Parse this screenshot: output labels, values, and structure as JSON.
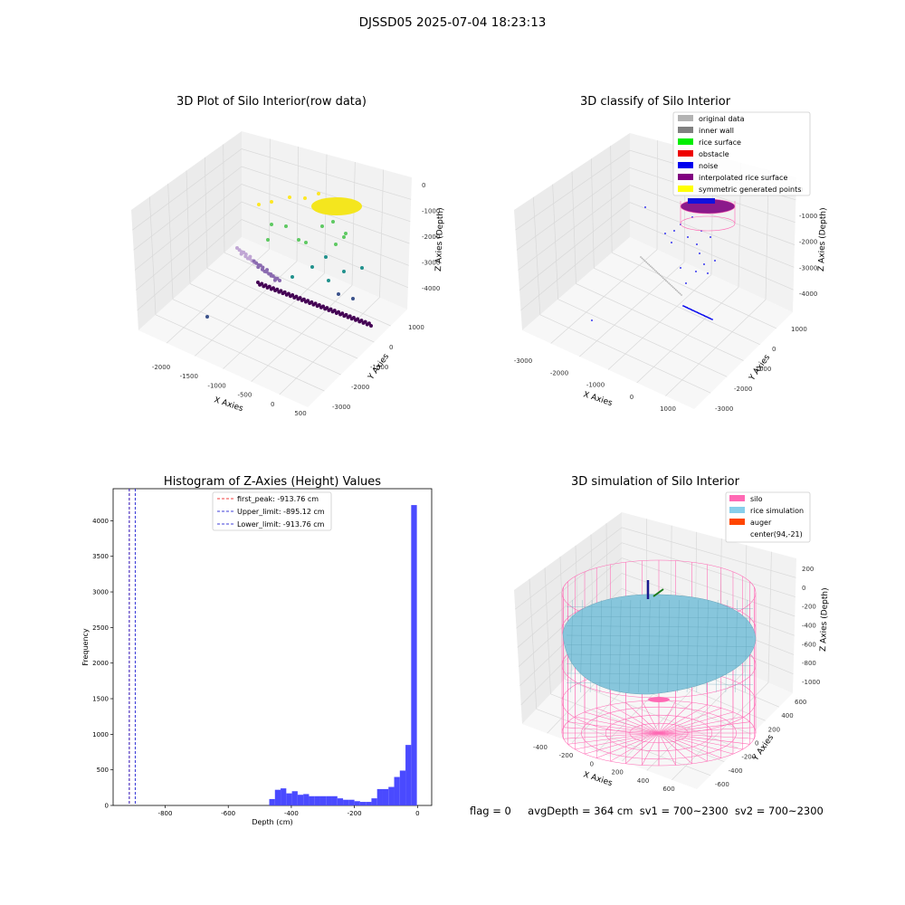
{
  "figure": {
    "suptitle": "DJSSD05 2025-07-04 18:23:13",
    "status": {
      "flag": "flag = 0",
      "avg_depth": "avgDepth = 364 cm",
      "sv1": "sv1 = 700~2300",
      "sv2": "sv2 = 700~2300"
    }
  },
  "chart_data": [
    {
      "type": "scatter3d",
      "title": "3D Plot of Silo Interior(row data)",
      "xlabel": "X Axies",
      "ylabel": "Y Axies",
      "zlabel": "Z Axies (Depth)",
      "x_ticks": [
        "-2000",
        "-1500",
        "-1000",
        "-500",
        "0",
        "500"
      ],
      "y_ticks": [
        "1000",
        "0",
        "-1000",
        "-2000",
        "-3000"
      ],
      "z_ticks": [
        "0",
        "-1000",
        "-2000",
        "-3000",
        "-4000"
      ],
      "colormap": [
        "#440154",
        "#3b528b",
        "#21918c",
        "#5ec962",
        "#fde725"
      ],
      "point_groups": [
        {
          "desc": "dense line along Y",
          "x": [
            -200,
            300
          ],
          "y": [
            -2600,
            800
          ],
          "z": [
            -4300,
            -4300
          ]
        },
        {
          "desc": "upper cluster",
          "x": [
            -100,
            400
          ],
          "y": [
            -600,
            600
          ],
          "z": [
            -800,
            -200
          ]
        }
      ]
    },
    {
      "type": "scatter3d",
      "title": "3D classify of Silo Interior",
      "xlabel": "X Axies",
      "ylabel": "Y Axies",
      "zlabel": "Z Axies (Depth)",
      "x_ticks": [
        "-3000",
        "-2000",
        "-1000",
        "0",
        "1000"
      ],
      "y_ticks": [
        "1000",
        "0",
        "-1000",
        "-2000",
        "-3000"
      ],
      "z_ticks": [
        "0",
        "-1000",
        "-2000",
        "-3000",
        "-4000"
      ],
      "legend_position": "top-right",
      "legend": [
        {
          "label": "original data",
          "color": "#b3b3b3"
        },
        {
          "label": "inner wall",
          "color": "#808080"
        },
        {
          "label": "rice surface",
          "color": "#00ee00"
        },
        {
          "label": "obstacle",
          "color": "#ee0000"
        },
        {
          "label": "noise",
          "color": "#0000ee"
        },
        {
          "label": "interpolated rice surface",
          "color": "#800080"
        },
        {
          "label": "symmetric generated points",
          "color": "#ffff00"
        }
      ]
    },
    {
      "type": "bar",
      "title": "Histogram of Z-Axies (Height) Values",
      "xlabel": "Depth (cm)",
      "ylabel": "Frequency",
      "xlim": [
        -965,
        45
      ],
      "ylim": [
        0,
        4450
      ],
      "x_ticks": [
        -800,
        -600,
        -400,
        -200,
        0
      ],
      "y_ticks": [
        0,
        500,
        1000,
        1500,
        2000,
        2500,
        3000,
        3500,
        4000
      ],
      "bar_color": "#4a4aff",
      "bin_width": 18,
      "bins": [
        {
          "start": -470,
          "count": 90
        },
        {
          "start": -452,
          "count": 220
        },
        {
          "start": -434,
          "count": 240
        },
        {
          "start": -416,
          "count": 170
        },
        {
          "start": -398,
          "count": 200
        },
        {
          "start": -380,
          "count": 150
        },
        {
          "start": -362,
          "count": 160
        },
        {
          "start": -344,
          "count": 130
        },
        {
          "start": -326,
          "count": 130
        },
        {
          "start": -308,
          "count": 130
        },
        {
          "start": -290,
          "count": 130
        },
        {
          "start": -272,
          "count": 130
        },
        {
          "start": -254,
          "count": 100
        },
        {
          "start": -236,
          "count": 80
        },
        {
          "start": -218,
          "count": 80
        },
        {
          "start": -200,
          "count": 60
        },
        {
          "start": -182,
          "count": 50
        },
        {
          "start": -164,
          "count": 50
        },
        {
          "start": -146,
          "count": 100
        },
        {
          "start": -128,
          "count": 230
        },
        {
          "start": -110,
          "count": 230
        },
        {
          "start": -92,
          "count": 260
        },
        {
          "start": -74,
          "count": 400
        },
        {
          "start": -56,
          "count": 490
        },
        {
          "start": -38,
          "count": 850
        },
        {
          "start": -20,
          "count": 4220
        }
      ],
      "vlines": [
        {
          "label": "first_peak: -913.76 cm",
          "x": -913.76,
          "color": "#ee0000"
        },
        {
          "label": "Upper_limit: -895.12 cm",
          "x": -895.12,
          "color": "#0000cc"
        },
        {
          "label": "Lower_limit: -913.76 cm",
          "x": -913.76,
          "color": "#0000cc"
        }
      ],
      "legend_position": "top-center"
    },
    {
      "type": "surface3d",
      "title": "3D simulation of Silo Interior",
      "xlabel": "X Axies",
      "ylabel": "Y Axies",
      "zlabel": "Z Axies (Depth)",
      "x_ticks": [
        "-400",
        "-200",
        "0",
        "200",
        "400",
        "600"
      ],
      "y_ticks": [
        "600",
        "400",
        "200",
        "0",
        "-200",
        "-400",
        "-600"
      ],
      "z_ticks": [
        "200",
        "0",
        "-200",
        "-400",
        "-600",
        "-800",
        "-1000"
      ],
      "legend_position": "top-right",
      "legend": [
        {
          "label": "silo",
          "color": "#ff69b4"
        },
        {
          "label": "rice simulation",
          "color": "#87ceeb"
        },
        {
          "label": "auger",
          "color": "#ff4500"
        },
        {
          "label": "center(94,-21)",
          "color": ""
        }
      ]
    }
  ]
}
